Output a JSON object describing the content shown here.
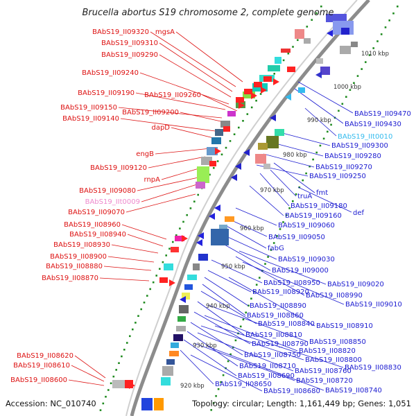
{
  "title": "Brucella abortus S19 chromosome 2, complete genome",
  "footer": {
    "accession": "Accession: NC_010740",
    "topology": "Topology: circular; Length: 1,161,449 bp; Genes: 1,051"
  },
  "colors": {
    "left_label": "#dd1111",
    "right_label": "#1a1ad0",
    "trna_label_left": "#ee88cc",
    "trna_label_right": "#33bbee",
    "backbone": "#8c8c8c",
    "dots": "#1e8a1e"
  },
  "kbp_ticks": [
    "1010 kbp",
    "1000 kbp",
    "990 kbp",
    "980 kbp",
    "970 kbp",
    "960 kbp",
    "950 kbp",
    "940 kbp",
    "930 kbp",
    "920 kbp"
  ],
  "left_labels": [
    "mgsA",
    "BAbS19_II09320",
    "BAbS19_II09310",
    "BAbS19_II09290",
    "BAbS19_II09240",
    "BAbS19_II09190",
    "BAbS19_II09260",
    "BAbS19_II09150",
    "BAbS19_II09200",
    "BAbS19_II09140",
    "dapD",
    "engB",
    "BAbS19_II09120",
    "rnpA",
    "BAbS19_II09080",
    "BAbS19_IIt0009",
    "BAbS19_II09070",
    "BAbS19_II08960",
    "BAbS19_II08940",
    "BAbS19_II08930",
    "BAbS19_II08900",
    "BAbS19_II08880",
    "BAbS19_II08870",
    "BAbS19_II08620",
    "BAbS19_II08610",
    "BAbS19_II08600"
  ],
  "right_labels": [
    "BAbS19_II09470",
    "BAbS19_II09430",
    "BAbS19_IIt0010",
    "BAbS19_II09300",
    "BAbS19_II09280",
    "BAbS19_II09270",
    "BAbS19_II09250",
    "fmt",
    "truA",
    "BAbS19_II09180",
    "def",
    "BAbS19_II09160",
    "BAbS19_II09060",
    "BAbS19_II09050",
    "fabG",
    "BAbS19_II09030",
    "BAbS19_II09000",
    "BAbS19_II08950",
    "BAbS19_II09020",
    "BAbS19_II08920",
    "BAbS19_II08990",
    "BAbS19_II09010",
    "BAbS19_II08890",
    "BAbS19_II08860",
    "BAbS19_II08840",
    "BAbS19_II08910",
    "BAbS19_II08810",
    "BAbS19_II08850",
    "BAbS19_II08790",
    "BAbS19_II08820",
    "BAbS19_II08750",
    "BAbS19_II08800",
    "BAbS19_II08710",
    "BAbS19_II08760",
    "BAbS19_II08830",
    "BAbS19_II08690",
    "BAbS19_II08720",
    "BAbS19_II08650",
    "BAbS19_II08680",
    "BAbS19_II08740"
  ]
}
